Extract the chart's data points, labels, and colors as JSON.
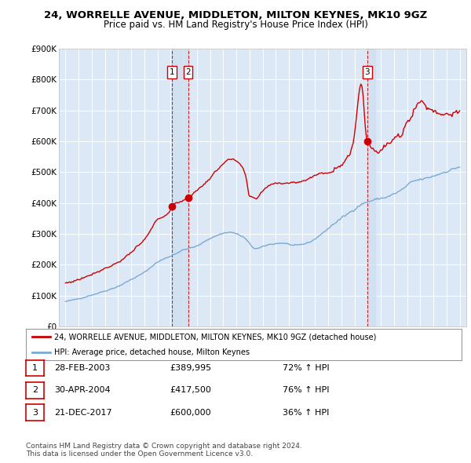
{
  "title": "24, WORRELLE AVENUE, MIDDLETON, MILTON KEYNES, MK10 9GZ",
  "subtitle": "Price paid vs. HM Land Registry's House Price Index (HPI)",
  "hpi_color": "#7aaad4",
  "price_color": "#cc0000",
  "sale_color": "#cc0000",
  "shade_color": "#d0e0f0",
  "ylim": [
    0,
    900000
  ],
  "yticks": [
    0,
    100000,
    200000,
    300000,
    400000,
    500000,
    600000,
    700000,
    800000,
    900000
  ],
  "ytick_labels": [
    "£0",
    "£100K",
    "£200K",
    "£300K",
    "£400K",
    "£500K",
    "£600K",
    "£700K",
    "£800K",
    "£900K"
  ],
  "sales": [
    {
      "date_num": 2003.12,
      "price": 389995,
      "label": "1"
    },
    {
      "date_num": 2004.33,
      "price": 417500,
      "label": "2"
    },
    {
      "date_num": 2017.97,
      "price": 600000,
      "label": "3"
    }
  ],
  "legend_entries": [
    {
      "label": "24, WORRELLE AVENUE, MIDDLETON, MILTON KEYNES, MK10 9GZ (detached house)",
      "color": "#cc0000"
    },
    {
      "label": "HPI: Average price, detached house, Milton Keynes",
      "color": "#7aaad4"
    }
  ],
  "table_rows": [
    {
      "num": "1",
      "date": "28-FEB-2003",
      "price": "£389,995",
      "change": "72% ↑ HPI"
    },
    {
      "num": "2",
      "date": "30-APR-2004",
      "price": "£417,500",
      "change": "76% ↑ HPI"
    },
    {
      "num": "3",
      "date": "21-DEC-2017",
      "price": "£600,000",
      "change": "36% ↑ HPI"
    }
  ],
  "footnote": "Contains HM Land Registry data © Crown copyright and database right 2024.\nThis data is licensed under the Open Government Licence v3.0.",
  "background_color": "#ffffff",
  "plot_bg_color": "#dce8f5"
}
